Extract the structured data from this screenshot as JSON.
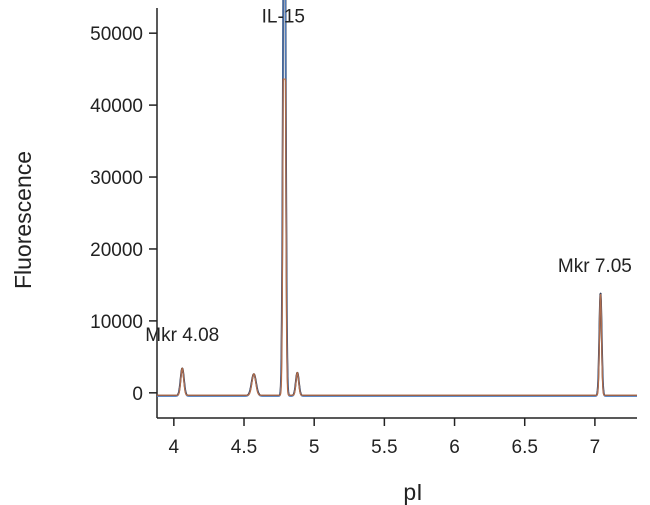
{
  "chart_data": {
    "type": "line",
    "title": "",
    "xlabel": "pI",
    "ylabel": "Fluorescence",
    "xlim": [
      3.88,
      7.3
    ],
    "ylim": [
      -3500,
      53500
    ],
    "x_ticks": [
      4,
      4.5,
      5,
      5.5,
      6,
      6.5,
      7
    ],
    "x_tick_labels": [
      "4",
      "4.5",
      "5",
      "5.5",
      "6",
      "6.5",
      "7"
    ],
    "y_ticks": [
      0,
      10000,
      20000,
      30000,
      40000,
      50000
    ],
    "y_tick_labels": [
      "0",
      "10000",
      "20000",
      "30000",
      "40000",
      "50000"
    ],
    "grid": false,
    "legend": "none",
    "baseline": -400,
    "peaks": [
      {
        "x": 4.06,
        "y": 3800,
        "width": 0.012
      },
      {
        "x": 4.57,
        "y": 3000,
        "width": 0.016
      },
      {
        "x": 4.785,
        "y": 48000,
        "width": 0.0085
      },
      {
        "x": 4.79,
        "y": 41500,
        "width": 0.0085
      },
      {
        "x": 4.88,
        "y": 3200,
        "width": 0.011
      },
      {
        "x": 7.04,
        "y": 14300,
        "width": 0.0085
      }
    ],
    "series": [
      {
        "values_described_by": "peaks",
        "color": "#1c1c2e"
      },
      {
        "values_described_by": "peaks",
        "color": "#5b8fd6"
      },
      {
        "values_described_by": "peaks",
        "color": "#c06a3a"
      }
    ],
    "annotations": [
      {
        "text": "IL-15",
        "x": 4.78,
        "y": 51500
      },
      {
        "text": "Mkr 4.08",
        "x": 4.06,
        "y": 7200
      },
      {
        "text": "Mkr 7.05",
        "x": 7.0,
        "y": 16800
      }
    ]
  }
}
